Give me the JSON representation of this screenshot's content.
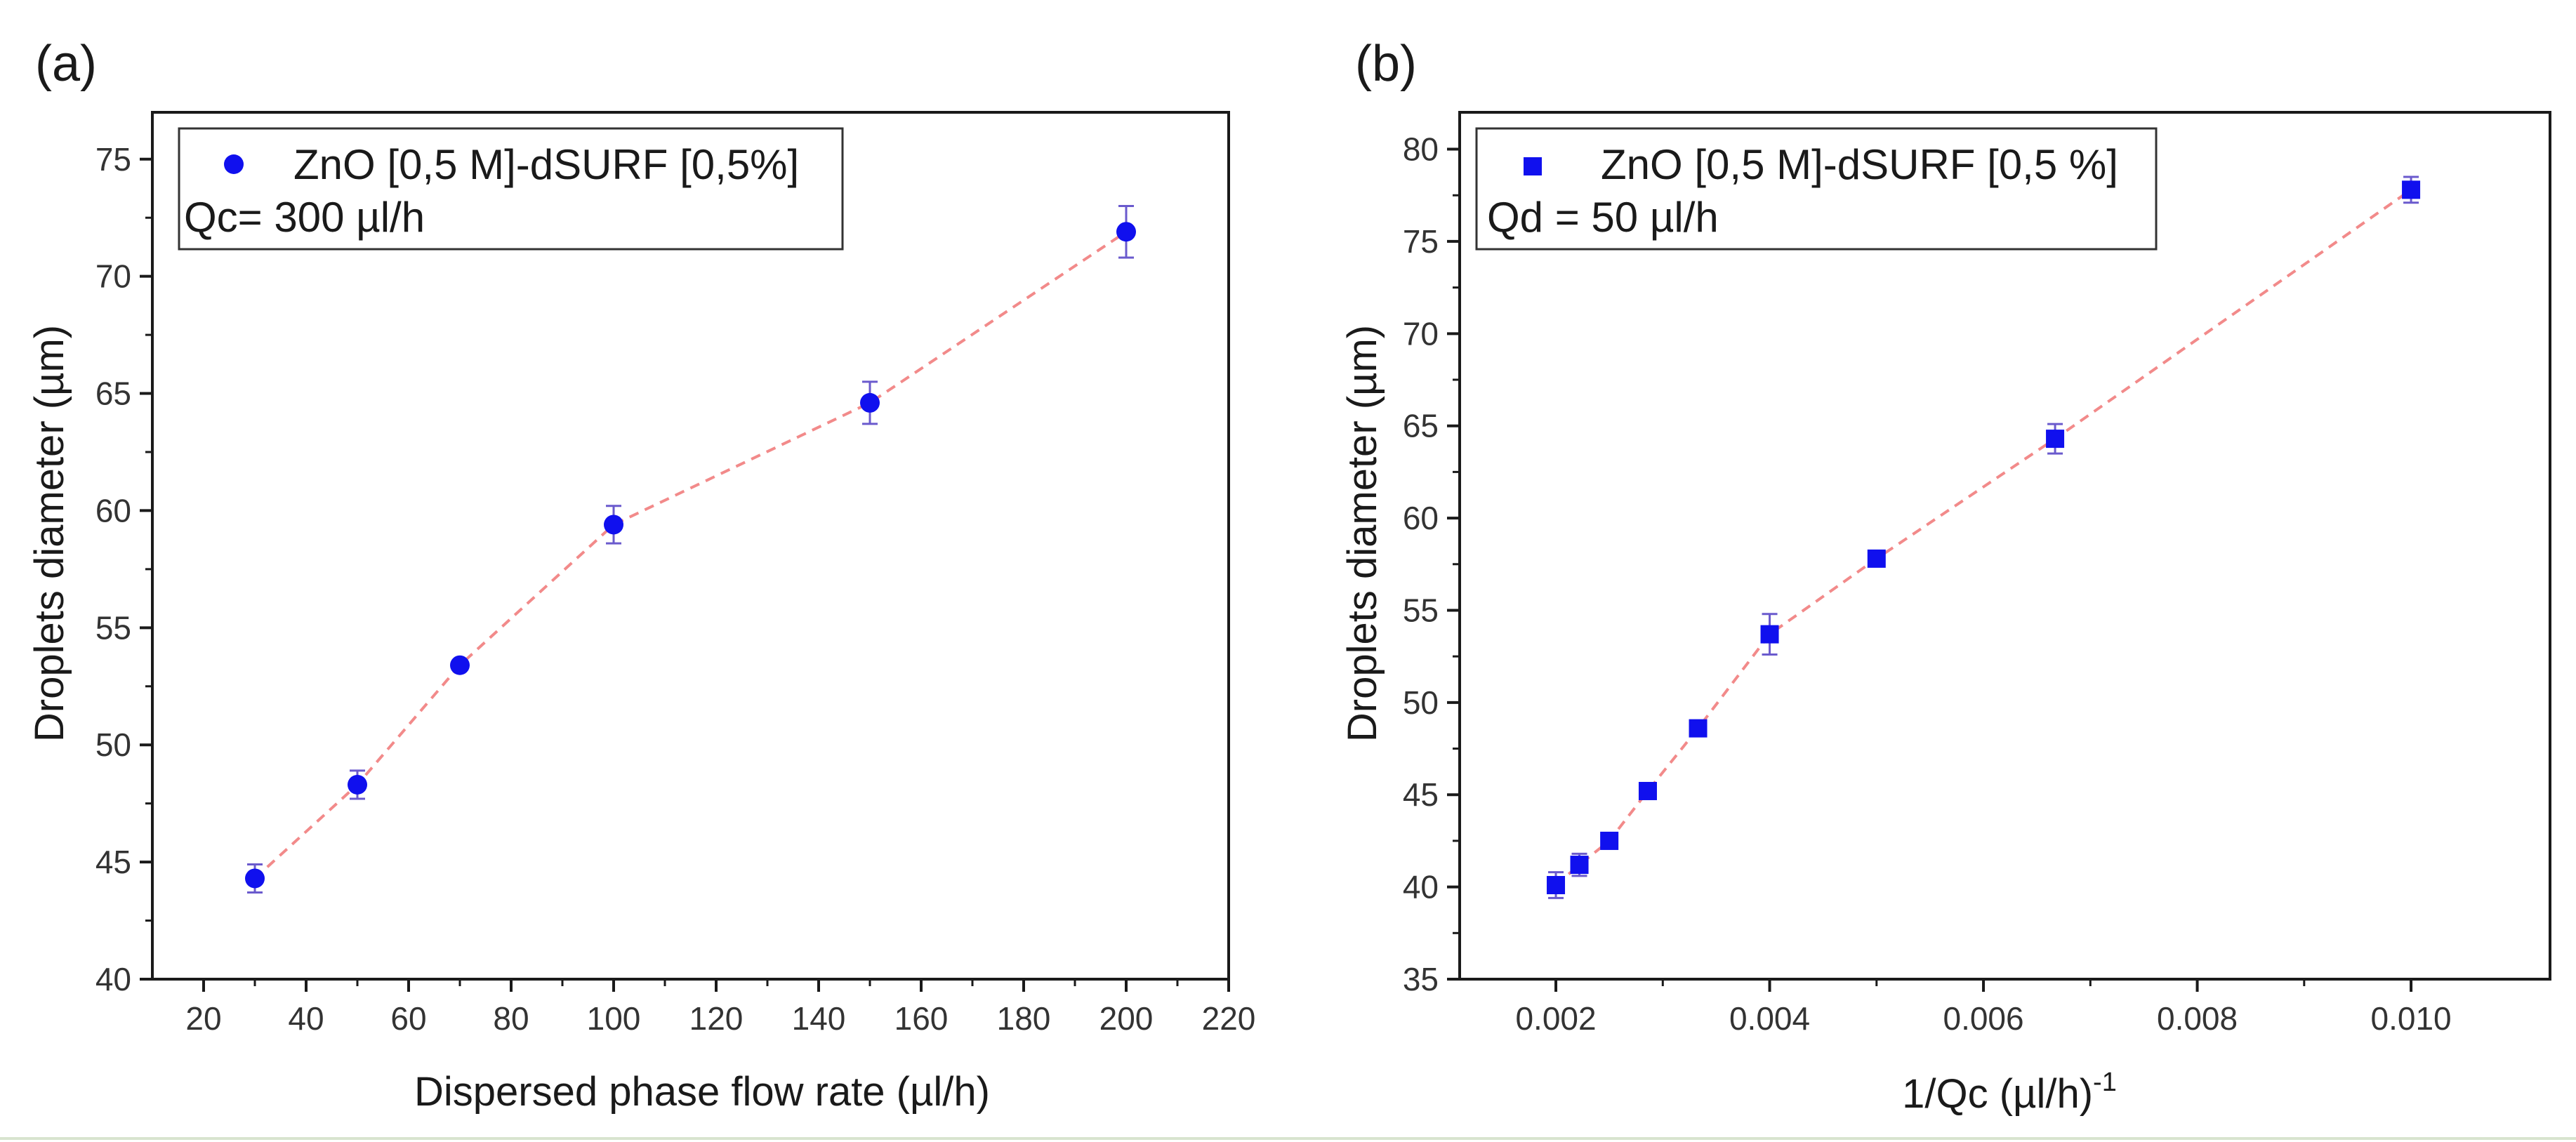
{
  "colors": {
    "marker": "#1010ee",
    "fit_line": "#f28a8a",
    "error_bar": "#6a5acd",
    "axes": "#1a1a1a"
  },
  "chart_data": [
    {
      "panel_label": "(a)",
      "type": "scatter",
      "marker": "circle",
      "title": "",
      "xlabel": "Dispersed phase flow rate (µl/h)",
      "ylabel": "Droplets diameter (µm)",
      "xlim": [
        10,
        220
      ],
      "ylim": [
        40,
        77
      ],
      "xticks": [
        20,
        40,
        60,
        80,
        100,
        120,
        140,
        160,
        180,
        200,
        220
      ],
      "yticks": [
        40,
        45,
        50,
        55,
        60,
        65,
        70,
        75
      ],
      "legend": {
        "placement": "top-left",
        "entry": "ZnO [0,5 M]-dSURF [0,5%]",
        "note": "Qc= 300 µl/h"
      },
      "series": [
        {
          "name": "ZnO [0,5 M]-dSURF [0,5%]",
          "x": [
            30,
            50,
            70,
            100,
            150,
            200
          ],
          "y": [
            44.3,
            48.3,
            53.4,
            59.4,
            64.6,
            71.9
          ],
          "err": [
            0.6,
            0.6,
            0.2,
            0.8,
            0.9,
            1.1
          ]
        }
      ]
    },
    {
      "panel_label": "(b)",
      "type": "scatter",
      "marker": "square",
      "title": "",
      "xlabel": "1/Qc (µl/h)",
      "xlabel_superscript": "-1",
      "ylabel": "Droplets diameter (µm)",
      "xlim": [
        0.0011,
        0.0113
      ],
      "ylim": [
        35,
        82
      ],
      "xticks": [
        0.002,
        0.004,
        0.006,
        0.008,
        0.01
      ],
      "xtick_labels": [
        "0.002",
        "0.004",
        "0.006",
        "0.008",
        "0.010"
      ],
      "yticks": [
        35,
        40,
        45,
        50,
        55,
        60,
        65,
        70,
        75,
        80
      ],
      "legend": {
        "placement": "top-left",
        "entry": "ZnO [0,5 M]-dSURF [0,5 %]",
        "note": "Qd = 50 µl/h"
      },
      "series": [
        {
          "name": "ZnO [0,5 M]-dSURF [0,5 %]",
          "x": [
            0.002,
            0.00222,
            0.0025,
            0.00286,
            0.00333,
            0.004,
            0.005,
            0.00667,
            0.01
          ],
          "y": [
            40.1,
            41.2,
            42.5,
            45.2,
            48.6,
            53.7,
            57.8,
            64.3,
            77.8
          ],
          "err": [
            0.7,
            0.6,
            0.3,
            0.3,
            0.3,
            1.1,
            0.3,
            0.8,
            0.7
          ]
        }
      ]
    }
  ]
}
